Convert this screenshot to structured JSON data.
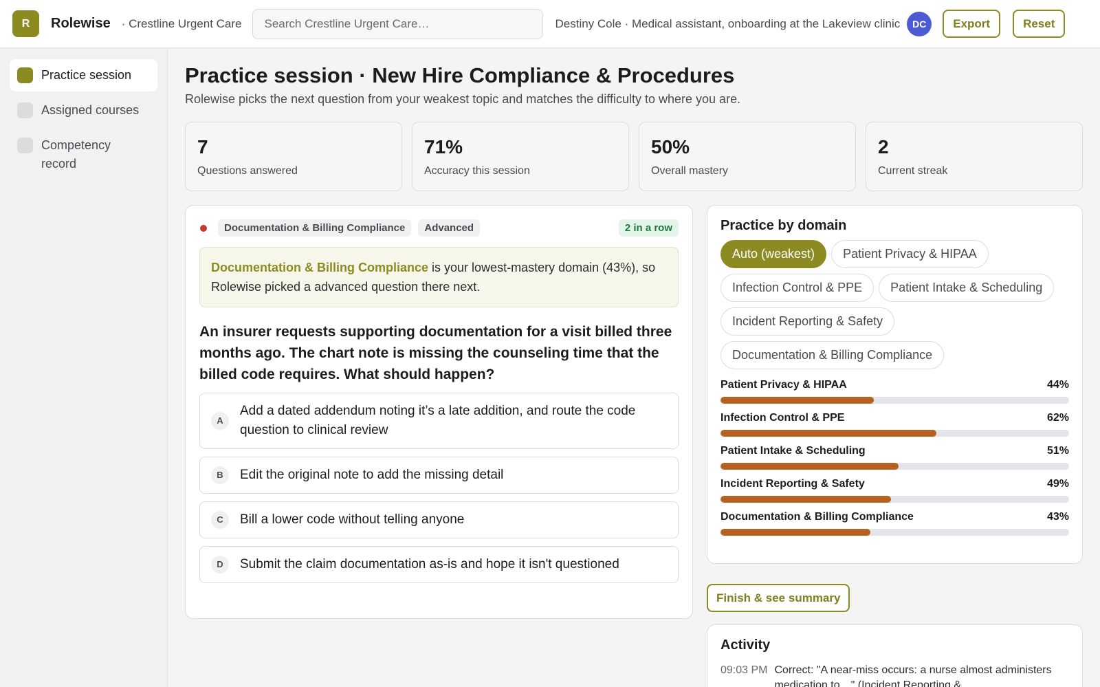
{
  "app": {
    "logo_letter": "R",
    "brand": "Rolewise",
    "org": "· Crestline Urgent Care",
    "search_placeholder": "Search Crestline Urgent Care…",
    "user_text": "Destiny Cole · Medical assistant, onboarding at the Lakeview clinic",
    "avatar_initials": "DC",
    "export_label": "Export",
    "reset_label": "Reset"
  },
  "sidebar": {
    "items": [
      {
        "label": "Practice session",
        "active": true
      },
      {
        "label": "Assigned courses",
        "active": false
      },
      {
        "label": "Competency record",
        "active": false
      }
    ]
  },
  "page": {
    "title": "Practice session · New Hire Compliance & Procedures",
    "subtitle": "Rolewise picks the next question from your weakest topic and matches the difficulty to where you are."
  },
  "stats": [
    {
      "value": "7",
      "label": "Questions answered"
    },
    {
      "value": "71%",
      "label": "Accuracy this session"
    },
    {
      "value": "50%",
      "label": "Overall mastery"
    },
    {
      "value": "2",
      "label": "Current streak"
    }
  ],
  "question_card": {
    "domain_tag": "Documentation & Billing Compliance",
    "level_tag": "Advanced",
    "streak_badge": "2 in a row",
    "hint_highlight": "Documentation & Billing Compliance",
    "hint_rest": " is your lowest-mastery domain (43%), so Rolewise picked a advanced question there next.",
    "question": "An insurer requests supporting documentation for a visit billed three months ago. The chart note is missing the counseling time that the billed code requires. What should happen?",
    "options": [
      {
        "letter": "A",
        "text": "Add a dated addendum noting it’s a late addition, and route the code question to clinical review"
      },
      {
        "letter": "B",
        "text": "Edit the original note to add the missing detail"
      },
      {
        "letter": "C",
        "text": "Bill a lower code without telling anyone"
      },
      {
        "letter": "D",
        "text": "Submit the claim documentation as-is and hope it isn't questioned"
      }
    ]
  },
  "domain_card": {
    "title": "Practice by domain",
    "chips": [
      {
        "label": "Auto (weakest)",
        "active": true
      },
      {
        "label": "Patient Privacy & HIPAA",
        "active": false
      },
      {
        "label": "Infection Control & PPE",
        "active": false
      },
      {
        "label": "Patient Intake & Scheduling",
        "active": false
      },
      {
        "label": "Incident Reporting & Safety",
        "active": false
      },
      {
        "label": "Documentation & Billing Compliance",
        "active": false
      }
    ],
    "bars": [
      {
        "label": "Patient Privacy & HIPAA",
        "pct_label": "44%",
        "value": 0.44
      },
      {
        "label": "Infection Control & PPE",
        "pct_label": "62%",
        "value": 0.62
      },
      {
        "label": "Patient Intake & Scheduling",
        "pct_label": "51%",
        "value": 0.51
      },
      {
        "label": "Incident Reporting & Safety",
        "pct_label": "49%",
        "value": 0.49
      },
      {
        "label": "Documentation & Billing Compliance",
        "pct_label": "43%",
        "value": 0.43
      }
    ],
    "bar_color": "#b5611f"
  },
  "finish_label": "Finish & see summary",
  "activity": {
    "title": "Activity",
    "items": [
      {
        "time": "09:03 PM",
        "text": "Correct: \"A near-miss occurs: a nurse almost administers medication to…\" (Incident Reporting &"
      }
    ]
  },
  "colors": {
    "accent": "#8b8b22",
    "avatar": "#4c5bd4",
    "danger_dot": "#c0392b",
    "success": "#1f7a42"
  }
}
